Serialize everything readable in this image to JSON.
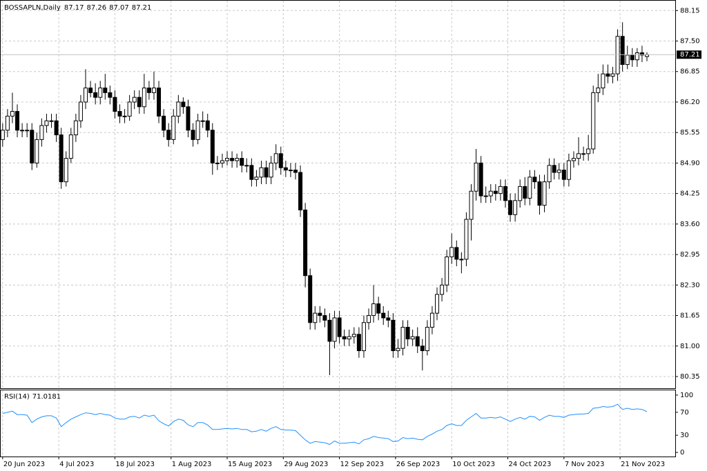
{
  "chart_data": [
    {
      "type": "candlestick",
      "title": "BOSSAPLN,Daily",
      "open": [
        85.4,
        85.6,
        85.9,
        86.0,
        85.6,
        85.6,
        85.6,
        84.9,
        85.4,
        85.7,
        85.8,
        85.8,
        85.5,
        84.5,
        85.0,
        85.5,
        85.8,
        86.2,
        86.5,
        86.4,
        86.3,
        86.5,
        86.4,
        86.3,
        86.0,
        85.9,
        85.9,
        86.2,
        86.3,
        86.1,
        86.5,
        86.4,
        86.5,
        85.9,
        85.6,
        85.4,
        85.9,
        86.2,
        86.1,
        85.6,
        85.4,
        85.8,
        85.8,
        85.6,
        84.9,
        84.9,
        84.95,
        85.0,
        84.95,
        85.0,
        84.85,
        84.85,
        84.55,
        84.6,
        84.8,
        84.6,
        84.9,
        85.1,
        84.8,
        84.75,
        84.75,
        84.7,
        83.9,
        82.5,
        81.5,
        81.7,
        81.65,
        81.55,
        81.1,
        81.6,
        81.2,
        81.15,
        81.2,
        81.25,
        80.9,
        81.5,
        81.65,
        81.9,
        81.7,
        81.6,
        81.55,
        80.9,
        80.95,
        81.4,
        81.15,
        81.2,
        81.0,
        80.9,
        81.4,
        81.7,
        82.1,
        82.3,
        82.9,
        83.1,
        82.85,
        82.85,
        83.7,
        84.3,
        84.9,
        84.2,
        84.2,
        84.3,
        84.25,
        84.4,
        84.1,
        83.8,
        84.1,
        84.4,
        84.15,
        84.6,
        84.5,
        84.0,
        84.5,
        84.85,
        84.7,
        84.75,
        84.55,
        84.95,
        85.0,
        85.1,
        85.1,
        85.2,
        86.4,
        86.5,
        86.8,
        86.75,
        86.8,
        87.6,
        87.0,
        87.2,
        87.1,
        87.25,
        87.17
      ],
      "high": [
        85.75,
        86.05,
        86.4,
        86.15,
        85.75,
        85.75,
        85.75,
        85.55,
        85.85,
        85.95,
        85.95,
        85.95,
        85.65,
        85.15,
        85.65,
        85.95,
        86.35,
        86.9,
        86.65,
        86.6,
        86.65,
        86.8,
        86.55,
        86.45,
        86.15,
        86.05,
        86.35,
        86.45,
        86.45,
        86.8,
        86.65,
        86.85,
        86.65,
        86.05,
        85.75,
        86.05,
        86.35,
        86.3,
        86.25,
        85.75,
        85.95,
        86.0,
        85.95,
        85.75,
        85.05,
        85.1,
        85.15,
        85.15,
        85.1,
        85.15,
        85.0,
        85.0,
        84.75,
        84.95,
        84.95,
        85.05,
        85.3,
        85.25,
        84.95,
        84.9,
        84.9,
        84.85,
        84.05,
        82.65,
        81.85,
        81.85,
        81.8,
        81.7,
        81.75,
        81.75,
        81.35,
        81.35,
        81.4,
        81.4,
        81.65,
        81.8,
        82.3,
        82.05,
        81.85,
        81.75,
        81.7,
        81.15,
        81.55,
        81.55,
        81.35,
        81.4,
        81.15,
        81.55,
        81.85,
        82.25,
        82.45,
        83.05,
        83.4,
        83.25,
        83.0,
        83.85,
        84.45,
        85.2,
        85.05,
        84.4,
        84.45,
        84.45,
        84.55,
        84.55,
        84.25,
        84.25,
        84.55,
        84.6,
        84.75,
        84.75,
        84.65,
        84.65,
        85.0,
        85.0,
        84.9,
        84.9,
        85.1,
        85.15,
        85.45,
        85.25,
        85.5,
        86.55,
        86.8,
        87.0,
        87.0,
        86.95,
        87.75,
        87.9,
        87.4,
        87.35,
        87.35,
        87.4,
        87.26
      ],
      "low": [
        85.25,
        85.45,
        85.75,
        85.45,
        85.45,
        85.45,
        84.75,
        84.8,
        85.25,
        85.55,
        85.65,
        85.35,
        84.35,
        84.4,
        84.9,
        85.35,
        85.65,
        86.05,
        86.3,
        86.15,
        86.15,
        86.25,
        86.15,
        85.85,
        85.75,
        85.75,
        85.8,
        86.05,
        85.95,
        85.95,
        86.25,
        86.25,
        85.75,
        85.45,
        85.25,
        85.3,
        85.75,
        85.95,
        85.45,
        85.25,
        85.3,
        85.65,
        85.45,
        84.65,
        84.75,
        84.8,
        84.85,
        84.8,
        84.8,
        84.7,
        84.7,
        84.4,
        84.4,
        84.45,
        84.45,
        84.45,
        84.75,
        84.65,
        84.6,
        84.6,
        84.55,
        83.75,
        82.25,
        81.35,
        81.35,
        81.5,
        81.4,
        80.38,
        80.95,
        81.05,
        81.0,
        81.0,
        81.05,
        80.75,
        80.75,
        81.35,
        81.5,
        81.55,
        81.45,
        81.4,
        80.75,
        80.75,
        80.8,
        81.0,
        81.0,
        80.85,
        80.48,
        80.8,
        81.25,
        81.55,
        81.95,
        82.15,
        82.75,
        82.7,
        82.55,
        82.7,
        83.25,
        84.1,
        84.05,
        84.05,
        84.05,
        84.1,
        84.1,
        83.95,
        83.65,
        83.65,
        83.95,
        84.0,
        84.0,
        84.35,
        83.8,
        83.85,
        84.35,
        84.55,
        84.55,
        84.4,
        84.4,
        84.8,
        84.85,
        84.95,
        84.95,
        85.1,
        86.2,
        86.35,
        86.6,
        86.6,
        86.65,
        86.85,
        86.9,
        86.95,
        86.95,
        87.05,
        87.07
      ],
      "close": [
        85.6,
        85.9,
        86.0,
        85.6,
        85.6,
        85.6,
        84.9,
        85.4,
        85.7,
        85.8,
        85.8,
        85.5,
        84.5,
        85.0,
        85.5,
        85.8,
        86.2,
        86.5,
        86.4,
        86.3,
        86.5,
        86.4,
        86.3,
        86.0,
        85.9,
        85.9,
        86.2,
        86.3,
        86.1,
        86.5,
        86.4,
        86.5,
        85.9,
        85.6,
        85.4,
        85.9,
        86.2,
        86.1,
        85.6,
        85.4,
        85.8,
        85.8,
        85.6,
        84.9,
        84.9,
        84.95,
        85.0,
        84.95,
        85.0,
        84.85,
        84.85,
        84.55,
        84.6,
        84.8,
        84.6,
        84.9,
        85.1,
        84.8,
        84.75,
        84.75,
        84.7,
        83.9,
        82.5,
        81.5,
        81.7,
        81.65,
        81.55,
        81.1,
        81.6,
        81.2,
        81.15,
        81.2,
        81.25,
        80.9,
        81.5,
        81.65,
        81.9,
        81.7,
        81.6,
        81.55,
        80.9,
        80.95,
        81.4,
        81.15,
        81.2,
        81.0,
        80.9,
        81.4,
        81.7,
        82.1,
        82.3,
        82.9,
        83.1,
        82.85,
        82.85,
        83.7,
        84.3,
        84.9,
        84.2,
        84.2,
        84.3,
        84.25,
        84.4,
        84.1,
        83.8,
        84.1,
        84.4,
        84.15,
        84.6,
        84.5,
        84.0,
        84.5,
        84.85,
        84.7,
        84.75,
        84.55,
        84.95,
        85.0,
        85.1,
        85.1,
        85.2,
        86.4,
        86.5,
        86.8,
        86.75,
        86.8,
        87.6,
        87.0,
        87.2,
        87.1,
        87.25,
        87.2,
        87.21
      ],
      "up_color": "#ffffff",
      "down_color": "#000000",
      "wick_color": "#000000",
      "ylim": [
        80.1,
        88.36
      ],
      "yticks": [
        80.35,
        {
          "value": 81.0,
          "label": "81.00"
        },
        81.65,
        {
          "value": 82.3,
          "label": "82.30"
        },
        82.95,
        {
          "value": 83.6,
          "label": "83.60"
        },
        84.25,
        {
          "value": 84.9,
          "label": "84.90"
        },
        85.55,
        {
          "value": 86.2,
          "label": "86.20"
        },
        86.85,
        {
          "value": 87.5,
          "label": "87.50"
        },
        88.15
      ],
      "xlim": [
        -0.4,
        137.8
      ],
      "xticks": [
        {
          "value": 0,
          "label": "20 Jun 2023"
        },
        {
          "value": 11.5,
          "label": "4 Jul 2023"
        },
        {
          "value": 23,
          "label": "18 Jul 2023"
        },
        {
          "value": 34.5,
          "label": "1 Aug 2023"
        },
        {
          "value": 46,
          "label": "15 Aug 2023"
        },
        {
          "value": 57.5,
          "label": "29 Aug 2023"
        },
        {
          "value": 69,
          "label": "12 Sep 2023"
        },
        {
          "value": 80.5,
          "label": "26 Sep 2023"
        },
        {
          "value": 92,
          "label": "10 Oct 2023"
        },
        {
          "value": 103.5,
          "label": "24 Oct 2023"
        },
        {
          "value": 115,
          "label": "7 Nov 2023"
        },
        {
          "value": 126.5,
          "label": "21 Nov 2023"
        }
      ],
      "grid": true
    },
    {
      "type": "line",
      "title": "RSI(14)",
      "color": "#1e90ff",
      "values": [
        68,
        70,
        72,
        66,
        66,
        65,
        52,
        58,
        62,
        64,
        64,
        60,
        45,
        52,
        58,
        62,
        66,
        69,
        68,
        66,
        68,
        66,
        65,
        60,
        58,
        58,
        62,
        63,
        60,
        65,
        63,
        65,
        55,
        50,
        46,
        54,
        58,
        56,
        48,
        45,
        52,
        52,
        48,
        40,
        40,
        41,
        42,
        41,
        42,
        40,
        40,
        36,
        37,
        40,
        37,
        42,
        45,
        40,
        39,
        39,
        38,
        30,
        22,
        16,
        19,
        18,
        17,
        14,
        20,
        16,
        16,
        17,
        18,
        15,
        22,
        24,
        28,
        26,
        25,
        24,
        19,
        20,
        26,
        24,
        25,
        23,
        22,
        28,
        32,
        37,
        40,
        47,
        50,
        47,
        47,
        56,
        62,
        68,
        60,
        60,
        61,
        60,
        62,
        58,
        54,
        58,
        61,
        58,
        63,
        62,
        56,
        61,
        65,
        63,
        63,
        61,
        65,
        66,
        67,
        67,
        68,
        77,
        78,
        80,
        79,
        80,
        84,
        75,
        77,
        75,
        76,
        75,
        71.0181
      ],
      "ylim": [
        -7.1,
        108.3
      ],
      "yticks": [
        0,
        30,
        70,
        100
      ]
    }
  ]
}
